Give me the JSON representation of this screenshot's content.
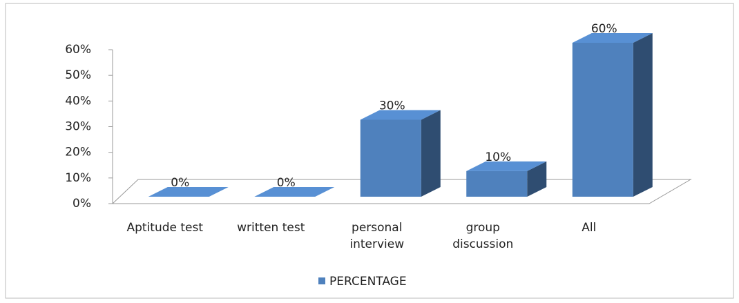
{
  "chart_data": {
    "type": "bar3d",
    "categories": [
      "Aptitude test",
      "written test",
      "personal interview",
      "group discussion",
      "All"
    ],
    "series": [
      {
        "name": "PERCENTAGE",
        "color": "#4f81bd",
        "values": [
          0,
          0,
          30,
          10,
          60
        ],
        "value_labels": [
          "0%",
          "0%",
          "30%",
          "10%",
          "60%"
        ]
      }
    ],
    "ylim": [
      0,
      60
    ],
    "yticks": [
      {
        "value": 0,
        "label": "0%"
      },
      {
        "value": 10,
        "label": "10%"
      },
      {
        "value": 20,
        "label": "20%"
      },
      {
        "value": 30,
        "label": "30%"
      },
      {
        "value": 40,
        "label": "40%"
      },
      {
        "value": 50,
        "label": "50%"
      },
      {
        "value": 60,
        "label": "60%"
      }
    ],
    "legend": "bottom"
  }
}
